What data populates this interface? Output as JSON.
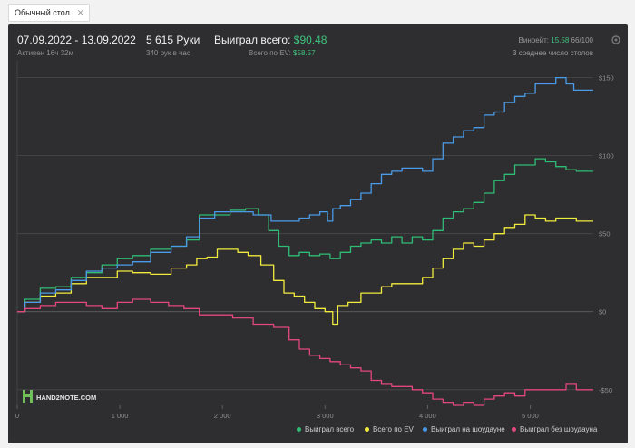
{
  "tab": {
    "label": "Обычный стол",
    "close": "✕"
  },
  "header": {
    "date_range": "07.09.2022 - 13.09.2022",
    "active": "Активен 16ч 32м",
    "hands": "5 615 Руки",
    "hands_per_hour": "340 рук в час",
    "won_total_label": "Выиграл всего:",
    "won_total_value": "$90.48",
    "ev_total_label": "Всего по EV:",
    "ev_total_value": "$58.57",
    "winrate_label": "Винрейт:",
    "winrate_value": "15.58",
    "winrate_suffix": "66/100",
    "tables": "3 среднее число столов"
  },
  "logo": {
    "text": "HAND2NOTE.COM"
  },
  "colors": {
    "green": "#2ebd75",
    "yellow": "#f2ec3c",
    "blue": "#4a9be8",
    "pink": "#e2477e",
    "grid": "#4a4a4c"
  },
  "chart_data": {
    "type": "line",
    "xlim": [
      0,
      5615
    ],
    "ylim": [
      -60,
      155
    ],
    "y_ticks": [
      150,
      100,
      50,
      0,
      -50
    ],
    "y_tick_labels": [
      "$150",
      "$100",
      "$50",
      "$0",
      "-$50"
    ],
    "x_ticks": [
      0,
      1000,
      2000,
      3000,
      4000,
      5000
    ],
    "x_tick_labels": [
      "0",
      "1 000",
      "2 000",
      "3 000",
      "4 000",
      "5 000"
    ],
    "legend_position": "bottom-right",
    "series": [
      {
        "name": "Выиграл всего",
        "color": "#2ebd75",
        "points": [
          [
            0,
            0
          ],
          [
            150,
            8
          ],
          [
            300,
            15
          ],
          [
            450,
            16
          ],
          [
            600,
            22
          ],
          [
            750,
            25
          ],
          [
            900,
            30
          ],
          [
            1050,
            34
          ],
          [
            1200,
            36
          ],
          [
            1400,
            40
          ],
          [
            1600,
            42
          ],
          [
            1700,
            46
          ],
          [
            1850,
            62
          ],
          [
            2000,
            62
          ],
          [
            2150,
            65
          ],
          [
            2300,
            66
          ],
          [
            2400,
            62
          ],
          [
            2500,
            52
          ],
          [
            2600,
            42
          ],
          [
            2700,
            36
          ],
          [
            2800,
            38
          ],
          [
            2900,
            36
          ],
          [
            3000,
            37
          ],
          [
            3100,
            34
          ],
          [
            3200,
            38
          ],
          [
            3300,
            42
          ],
          [
            3400,
            44
          ],
          [
            3500,
            46
          ],
          [
            3600,
            44
          ],
          [
            3700,
            48
          ],
          [
            3800,
            44
          ],
          [
            3900,
            48
          ],
          [
            4000,
            46
          ],
          [
            4100,
            52
          ],
          [
            4200,
            60
          ],
          [
            4300,
            64
          ],
          [
            4400,
            66
          ],
          [
            4500,
            70
          ],
          [
            4600,
            76
          ],
          [
            4700,
            84
          ],
          [
            4800,
            88
          ],
          [
            4900,
            94
          ],
          [
            5000,
            94
          ],
          [
            5100,
            98
          ],
          [
            5200,
            96
          ],
          [
            5300,
            93
          ],
          [
            5400,
            91
          ],
          [
            5500,
            90
          ],
          [
            5615,
            90
          ]
        ]
      },
      {
        "name": "Всего по EV",
        "color": "#f2ec3c",
        "points": [
          [
            0,
            0
          ],
          [
            150,
            6
          ],
          [
            300,
            10
          ],
          [
            450,
            12
          ],
          [
            600,
            18
          ],
          [
            750,
            22
          ],
          [
            900,
            22
          ],
          [
            1050,
            26
          ],
          [
            1200,
            25
          ],
          [
            1400,
            24
          ],
          [
            1600,
            28
          ],
          [
            1700,
            30
          ],
          [
            1800,
            34
          ],
          [
            1900,
            35
          ],
          [
            2000,
            40
          ],
          [
            2100,
            40
          ],
          [
            2200,
            38
          ],
          [
            2300,
            36
          ],
          [
            2450,
            30
          ],
          [
            2550,
            20
          ],
          [
            2650,
            12
          ],
          [
            2750,
            10
          ],
          [
            2850,
            6
          ],
          [
            2950,
            2
          ],
          [
            3050,
            0
          ],
          [
            3100,
            -8
          ],
          [
            3150,
            4
          ],
          [
            3300,
            6
          ],
          [
            3400,
            12
          ],
          [
            3500,
            12
          ],
          [
            3600,
            16
          ],
          [
            3700,
            18
          ],
          [
            3800,
            18
          ],
          [
            3900,
            18
          ],
          [
            4000,
            22
          ],
          [
            4100,
            28
          ],
          [
            4200,
            34
          ],
          [
            4300,
            40
          ],
          [
            4400,
            44
          ],
          [
            4500,
            42
          ],
          [
            4600,
            46
          ],
          [
            4700,
            50
          ],
          [
            4800,
            54
          ],
          [
            4900,
            56
          ],
          [
            5000,
            62
          ],
          [
            5100,
            60
          ],
          [
            5200,
            58
          ],
          [
            5300,
            60
          ],
          [
            5400,
            60
          ],
          [
            5500,
            58
          ],
          [
            5615,
            58
          ]
        ]
      },
      {
        "name": "Выиграл на шоудауне",
        "color": "#4a9be8",
        "points": [
          [
            0,
            0
          ],
          [
            150,
            6
          ],
          [
            300,
            12
          ],
          [
            450,
            14
          ],
          [
            600,
            20
          ],
          [
            750,
            26
          ],
          [
            900,
            28
          ],
          [
            1050,
            30
          ],
          [
            1200,
            32
          ],
          [
            1400,
            38
          ],
          [
            1600,
            42
          ],
          [
            1700,
            48
          ],
          [
            1850,
            60
          ],
          [
            2000,
            64
          ],
          [
            2200,
            64
          ],
          [
            2400,
            62
          ],
          [
            2550,
            58
          ],
          [
            2700,
            58
          ],
          [
            2800,
            60
          ],
          [
            2900,
            62
          ],
          [
            3000,
            64
          ],
          [
            3050,
            58
          ],
          [
            3100,
            66
          ],
          [
            3200,
            68
          ],
          [
            3300,
            72
          ],
          [
            3400,
            76
          ],
          [
            3500,
            82
          ],
          [
            3600,
            88
          ],
          [
            3700,
            90
          ],
          [
            3800,
            92
          ],
          [
            3900,
            92
          ],
          [
            4000,
            90
          ],
          [
            4100,
            98
          ],
          [
            4200,
            108
          ],
          [
            4300,
            112
          ],
          [
            4400,
            116
          ],
          [
            4500,
            118
          ],
          [
            4600,
            126
          ],
          [
            4700,
            128
          ],
          [
            4800,
            134
          ],
          [
            4900,
            138
          ],
          [
            5000,
            140
          ],
          [
            5100,
            146
          ],
          [
            5200,
            146
          ],
          [
            5300,
            150
          ],
          [
            5400,
            146
          ],
          [
            5450,
            142
          ],
          [
            5550,
            142
          ],
          [
            5615,
            142
          ]
        ]
      },
      {
        "name": "Выиграл без шоудауна",
        "color": "#e2477e",
        "points": [
          [
            0,
            0
          ],
          [
            150,
            2
          ],
          [
            300,
            4
          ],
          [
            450,
            6
          ],
          [
            600,
            6
          ],
          [
            750,
            4
          ],
          [
            900,
            2
          ],
          [
            1050,
            6
          ],
          [
            1200,
            8
          ],
          [
            1400,
            6
          ],
          [
            1550,
            4
          ],
          [
            1700,
            2
          ],
          [
            1850,
            -2
          ],
          [
            2000,
            -2
          ],
          [
            2200,
            -4
          ],
          [
            2400,
            -8
          ],
          [
            2600,
            -10
          ],
          [
            2700,
            -18
          ],
          [
            2800,
            -24
          ],
          [
            2900,
            -28
          ],
          [
            3000,
            -30
          ],
          [
            3100,
            -32
          ],
          [
            3200,
            -34
          ],
          [
            3300,
            -36
          ],
          [
            3400,
            -38
          ],
          [
            3500,
            -44
          ],
          [
            3600,
            -46
          ],
          [
            3700,
            -48
          ],
          [
            3800,
            -48
          ],
          [
            3900,
            -50
          ],
          [
            4000,
            -52
          ],
          [
            4100,
            -56
          ],
          [
            4200,
            -58
          ],
          [
            4300,
            -60
          ],
          [
            4400,
            -58
          ],
          [
            4500,
            -60
          ],
          [
            4600,
            -56
          ],
          [
            4700,
            -54
          ],
          [
            4800,
            -52
          ],
          [
            4900,
            -54
          ],
          [
            5000,
            -50
          ],
          [
            5100,
            -50
          ],
          [
            5200,
            -50
          ],
          [
            5300,
            -50
          ],
          [
            5400,
            -46
          ],
          [
            5500,
            -50
          ],
          [
            5615,
            -50
          ]
        ]
      }
    ]
  }
}
